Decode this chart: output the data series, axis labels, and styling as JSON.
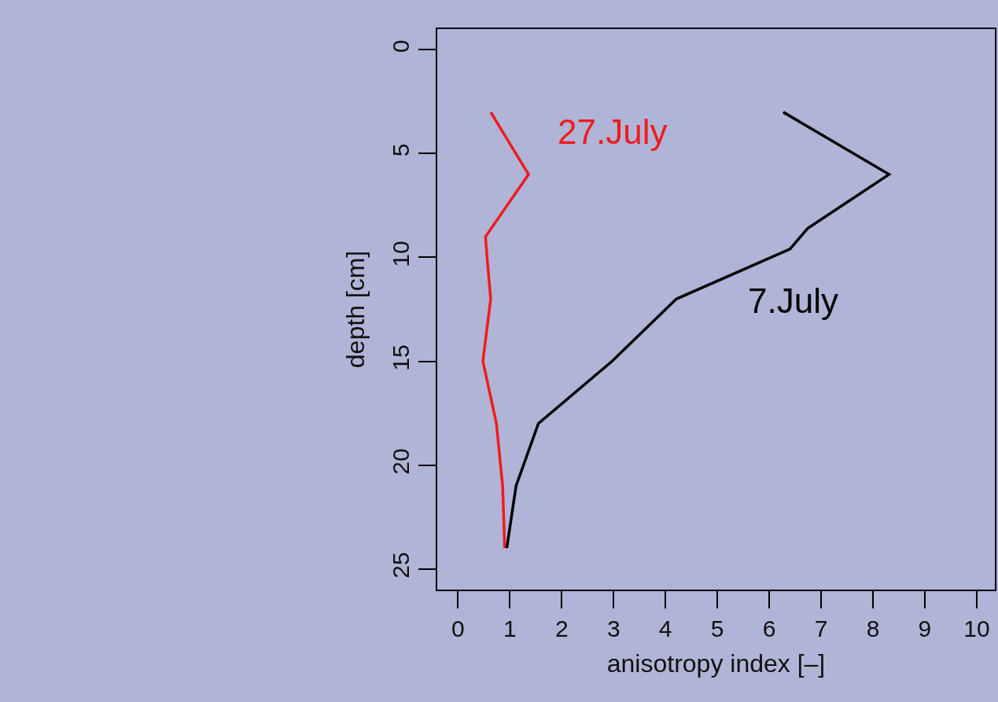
{
  "chart_data": {
    "type": "line",
    "xlabel": "anisotropy index [–]",
    "ylabel": "depth [cm]",
    "xlim": [
      -0.4,
      10.35
    ],
    "xticks": [
      0,
      1,
      2,
      3,
      4,
      5,
      6,
      7,
      8,
      9,
      10
    ],
    "ylim": [
      26,
      -1
    ],
    "yticks": [
      0,
      5,
      10,
      15,
      20,
      25
    ],
    "grid": false,
    "legend": false,
    "marker": "none",
    "line_style": "solid",
    "series": [
      {
        "name": "27.July",
        "color": "#ee1c1c",
        "x": [
          0.63,
          1.36,
          0.53,
          0.56,
          0.63,
          0.48,
          0.74,
          0.86,
          0.9
        ],
        "values": [
          3,
          6,
          9,
          10,
          12,
          15,
          18,
          21,
          24
        ]
      },
      {
        "name": "7.July",
        "color": "#000000",
        "x": [
          6.27,
          8.31,
          6.74,
          6.4,
          4.21,
          2.97,
          1.55,
          1.12,
          0.94
        ],
        "values": [
          3,
          6,
          8.6,
          9.6,
          12,
          15,
          18,
          21,
          24
        ]
      }
    ]
  }
}
